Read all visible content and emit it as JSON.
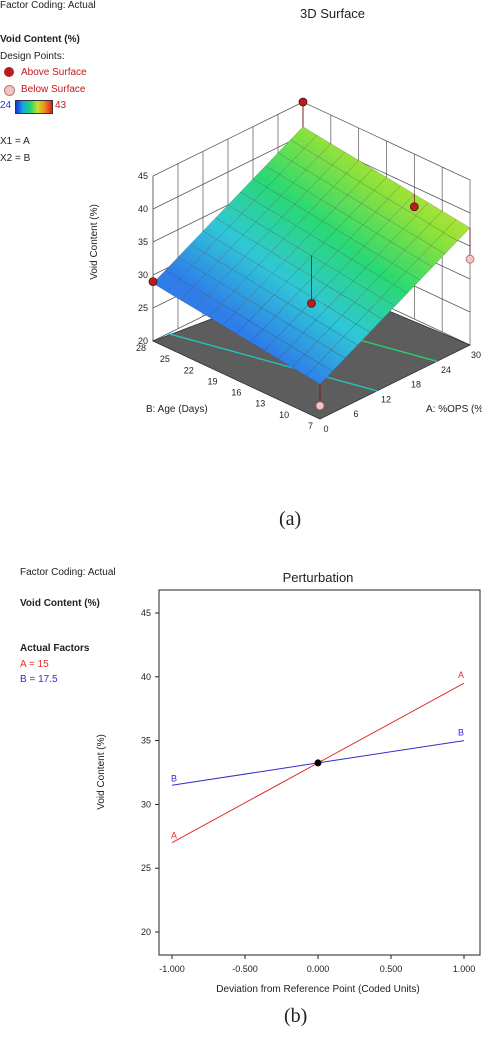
{
  "chart_data": [
    {
      "type": "surface",
      "title": "3D Surface",
      "factor_coding": "Factor Coding: Actual",
      "response_label": "Void Content (%)",
      "design_points_label": "Design Points:",
      "legend": {
        "above": "Above Surface",
        "below": "Below Surface",
        "color_min": "24",
        "color_max": "43"
      },
      "factor_map": [
        "X1 = A",
        "X2 = B"
      ],
      "zlabel": "Void Content (%)",
      "z_ticks": [
        "20",
        "25",
        "30",
        "35",
        "40",
        "45"
      ],
      "xlabel": "A: %OPS (%)",
      "x_ticks": [
        "0",
        "6",
        "12",
        "18",
        "24",
        "30"
      ],
      "ylabel": "B: Age (Days)",
      "y_ticks": [
        "7",
        "10",
        "13",
        "16",
        "19",
        "22",
        "25",
        "28"
      ],
      "surface": {
        "A_range": [
          0,
          30
        ],
        "B_range": [
          7,
          28
        ],
        "z_range": [
          20,
          45
        ]
      },
      "design_points": [
        {
          "A": 0,
          "B": 28,
          "z": 29,
          "type": "above"
        },
        {
          "A": 30,
          "B": 28,
          "z": 45,
          "type": "above"
        },
        {
          "A": 30,
          "B": 7,
          "z": 33,
          "type": "below"
        },
        {
          "A": 30,
          "B": 14,
          "z": 37,
          "type": "above"
        },
        {
          "A": 15,
          "B": 17.5,
          "z": 26,
          "type": "above"
        },
        {
          "A": 0,
          "B": 7,
          "z": 22,
          "type": "below"
        }
      ],
      "caption": "(a)"
    },
    {
      "type": "line",
      "title": "Perturbation",
      "factor_coding": "Factor Coding: Actual",
      "response_label": "Void Content (%)",
      "actual_factors_label": "Actual Factors",
      "actual_factors": [
        {
          "text": "A = 15",
          "color": "#e03030"
        },
        {
          "text": "B = 17.5",
          "color": "#2f2fcf"
        }
      ],
      "xlabel": "Deviation from Reference Point (Coded Units)",
      "ylabel": "Void Content (%)",
      "x_ticks": [
        "-1.000",
        "-0.500",
        "0.000",
        "0.500",
        "1.000"
      ],
      "y_ticks": [
        "20",
        "25",
        "30",
        "35",
        "40",
        "45"
      ],
      "xlim": [
        -1,
        1
      ],
      "ylim": [
        18.2,
        46.8
      ],
      "series": [
        {
          "name": "A",
          "color": "#e03030",
          "x": [
            -1,
            0,
            1
          ],
          "y": [
            27.0,
            33.25,
            39.5
          ]
        },
        {
          "name": "B",
          "color": "#2f2fcf",
          "x": [
            -1,
            0,
            1
          ],
          "y": [
            31.5,
            33.25,
            35.0
          ]
        }
      ],
      "reference_point": {
        "x": 0,
        "y": 33.25
      },
      "caption": "(b)"
    }
  ]
}
